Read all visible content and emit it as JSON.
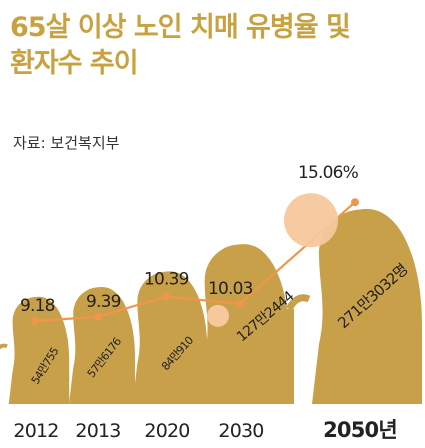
{
  "title": {
    "line1": "65살 이상 노인 치매 유병율 및",
    "line2": "환자수 추이"
  },
  "source": "자료: 보건복지부",
  "colors": {
    "title": "#c9a23f",
    "figure": "#c8a04a",
    "line": "#f0964b",
    "circle_fill": "#f6c89c",
    "text": "#222222"
  },
  "chart_data": {
    "type": "line",
    "categories": [
      "2012",
      "2013",
      "2020",
      "2030",
      "2050"
    ],
    "category_labels": [
      "2012",
      "2013",
      "2020",
      "2030",
      "2050년"
    ],
    "series": [
      {
        "values": [
          9.18,
          9.39,
          10.39,
          10.03,
          15.06
        ],
        "labels": [
          "9.18",
          "9.39",
          "10.39",
          "10.03",
          "15.06%"
        ]
      }
    ],
    "patients": [
      {
        "year": "2012",
        "value": 540755,
        "label": "54만755"
      },
      {
        "year": "2013",
        "value": 576176,
        "label": "57만6176"
      },
      {
        "year": "2020",
        "value": 840910,
        "label": "84만910"
      },
      {
        "year": "2030",
        "value": 1272444,
        "label": "127만2444"
      },
      {
        "year": "2050",
        "value": 2713032,
        "label": "271만3032명"
      }
    ],
    "xlabel": "",
    "ylabel": ""
  }
}
